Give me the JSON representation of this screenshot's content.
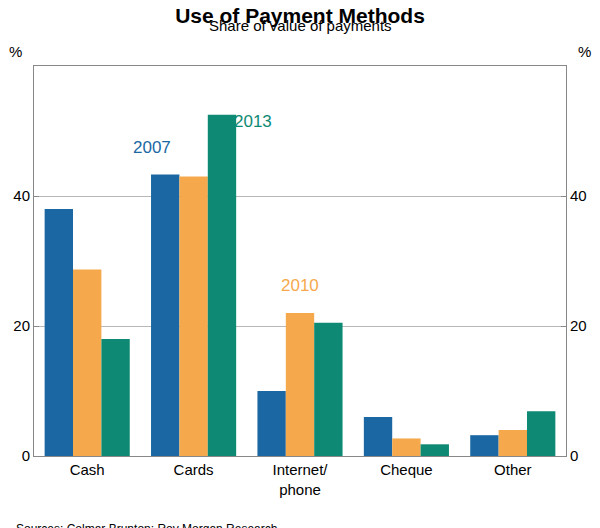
{
  "chart_data": {
    "type": "bar",
    "title": "Use of Payment Methods",
    "subtitle": "Share of value of payments",
    "ylabel": "%",
    "y2label": "%",
    "source": "Sources: Colmar Brunton; Roy Morgan Research",
    "categories": [
      "Cash",
      "Cards",
      "Internet/\nphone",
      "Cheque",
      "Other"
    ],
    "series": [
      {
        "name": "2007",
        "color": "#1a67a3",
        "values": [
          38,
          43.3,
          10,
          6,
          3.2
        ]
      },
      {
        "name": "2010",
        "color": "#f5a94c",
        "values": [
          28.7,
          43,
          22,
          2.7,
          4
        ]
      },
      {
        "name": "2013",
        "color": "#0e8a74",
        "values": [
          18,
          52.5,
          20.5,
          1.8,
          6.9
        ]
      }
    ],
    "ylim": [
      0,
      60
    ],
    "yticks": [
      0,
      20,
      40
    ],
    "y2lim": [
      0,
      60
    ],
    "y2ticks": [
      0,
      20,
      40
    ],
    "grid": true
  }
}
